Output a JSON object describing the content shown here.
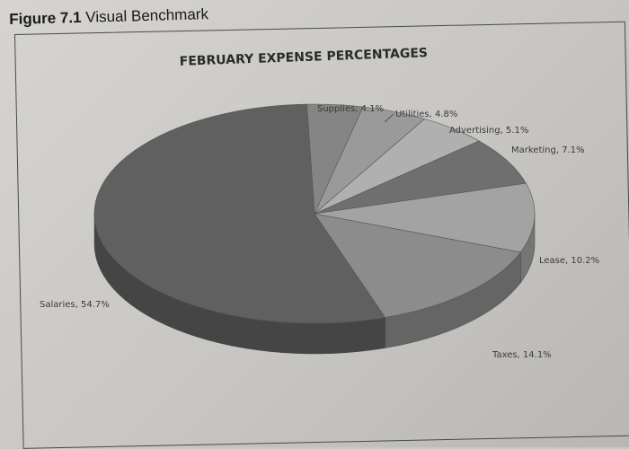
{
  "figure": {
    "number_label": "Figure 7.1",
    "caption": "Visual Benchmark"
  },
  "chart_data": {
    "type": "pie",
    "title": "FEBRUARY EXPENSE PERCENTAGES",
    "style": "3d-exploded-none",
    "slices": [
      {
        "name": "Supplies",
        "value": 4.1,
        "label": "Supplies, 4.1%",
        "color": "#858585"
      },
      {
        "name": "Utilities",
        "value": 4.8,
        "label": "Utilities, 4.8%",
        "color": "#9a9a9a"
      },
      {
        "name": "Advertising",
        "value": 5.1,
        "label": "Advertising, 5.1%",
        "color": "#b0b0b0"
      },
      {
        "name": "Marketing",
        "value": 7.1,
        "label": "Marketing, 7.1%",
        "color": "#6f6f6f"
      },
      {
        "name": "Lease",
        "value": 10.2,
        "label": "Lease, 10.2%",
        "color": "#a3a3a3"
      },
      {
        "name": "Taxes",
        "value": 14.1,
        "label": "Taxes, 14.1%",
        "color": "#8c8c8c"
      },
      {
        "name": "Salaries",
        "value": 54.7,
        "label": "Salaries, 54.7%",
        "color": "#606060"
      }
    ]
  }
}
